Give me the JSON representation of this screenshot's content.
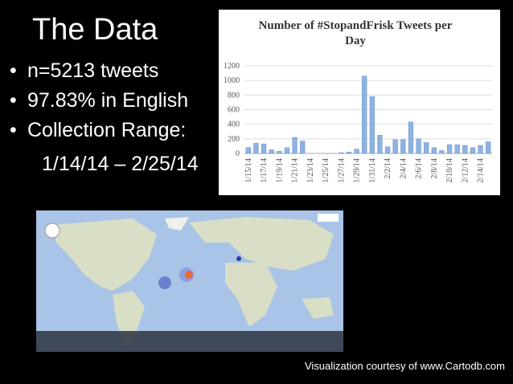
{
  "slide": {
    "title": "The Data",
    "bullets": [
      "n=5213 tweets",
      "97.83% in English",
      "Collection Range:"
    ],
    "sub_bullet": "1/14/14 – 2/25/14",
    "credit": "Visualization courtesy of www.Cartodb.com"
  },
  "chart_data": {
    "type": "bar",
    "title": "Number of #StopandFrisk Tweets per Day",
    "categories": [
      "1/15/14",
      null,
      "1/17/14",
      null,
      "1/19/14",
      null,
      "1/21/14",
      null,
      "1/23/14",
      null,
      "1/25/14",
      null,
      "1/27/14",
      null,
      "1/29/14",
      null,
      "1/31/14",
      null,
      "2/2/14",
      null,
      "2/4/14",
      null,
      "2/6/14",
      null,
      "2/8/14",
      null,
      "2/10/14",
      null,
      "2/12/14",
      null,
      "2/14/14",
      null
    ],
    "values": [
      80,
      140,
      130,
      50,
      30,
      80,
      220,
      170,
      0,
      0,
      0,
      0,
      10,
      20,
      60,
      1060,
      780,
      250,
      90,
      190,
      190,
      430,
      200,
      150,
      80,
      40,
      120,
      120,
      110,
      80,
      110,
      160
    ],
    "color": "#8fb3e0",
    "ylim": [
      0,
      1200
    ],
    "yticks": [
      0,
      200,
      400,
      600,
      800,
      1000,
      1200
    ],
    "grid": true
  }
}
